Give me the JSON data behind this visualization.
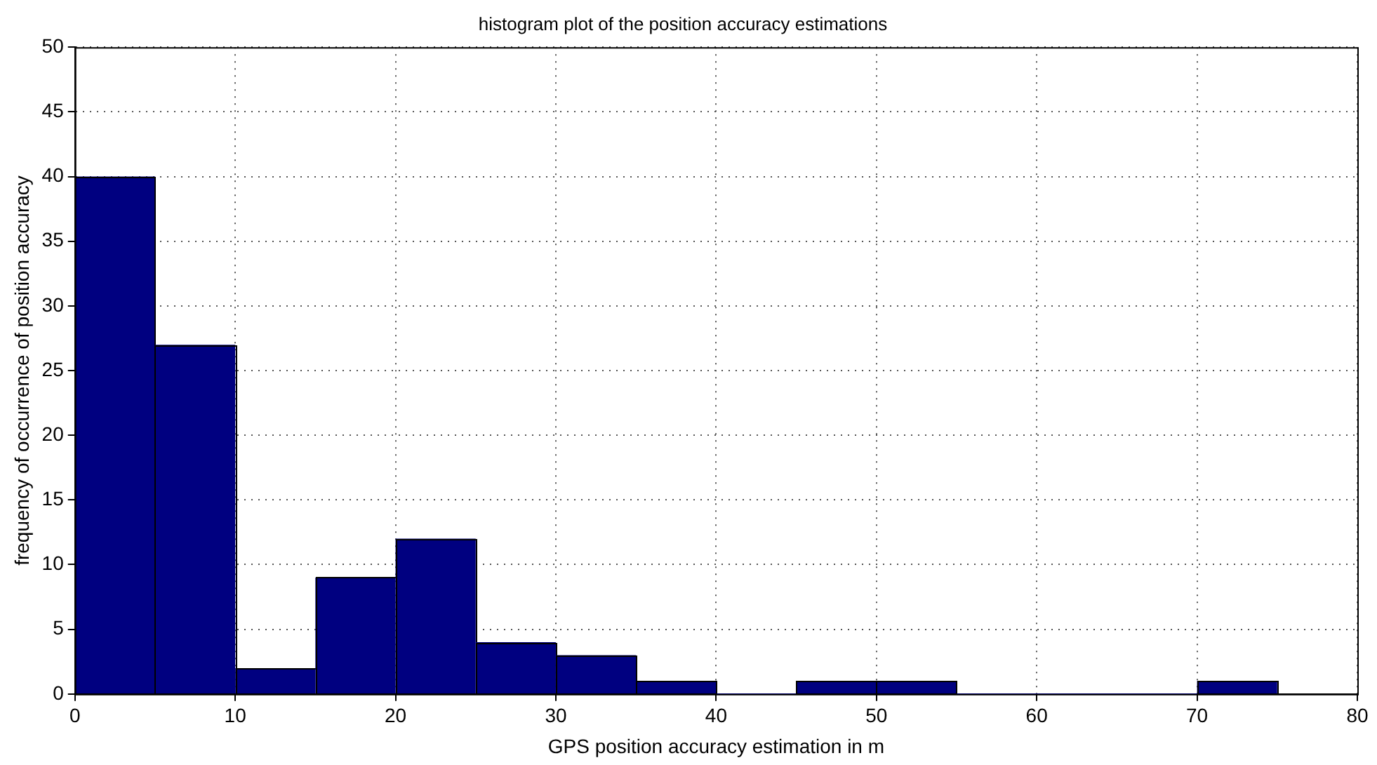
{
  "chart_data": {
    "type": "histogram",
    "title": "histogram plot of the position accuracy estimations",
    "xlabel": "GPS position accuracy estimation in m",
    "ylabel": "frequency of occurrence of position accuracy",
    "bins": [
      0,
      5,
      10,
      15,
      20,
      25,
      30,
      35,
      40,
      45,
      50,
      55,
      60,
      65,
      70,
      75
    ],
    "values": [
      40,
      27,
      2,
      9,
      12,
      4,
      3,
      1,
      0,
      1,
      1,
      0,
      0,
      0,
      1
    ],
    "color": "#000080",
    "xlim": [
      0,
      80
    ],
    "xticks": [
      0,
      10,
      20,
      30,
      40,
      50,
      60,
      70,
      80
    ],
    "ylim": [
      0,
      50
    ],
    "yticks": [
      0,
      5,
      10,
      15,
      20,
      25,
      30,
      35,
      40,
      45,
      50
    ],
    "grid": true
  }
}
